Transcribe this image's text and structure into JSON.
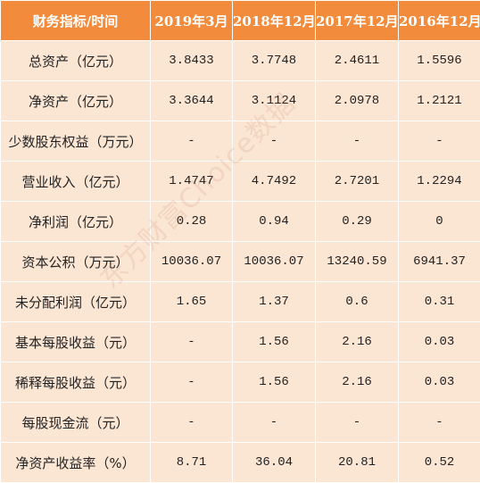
{
  "table": {
    "headers": [
      "财务指标/时间",
      "2019年3月",
      "2018年12月",
      "2017年12月",
      "2016年12月"
    ],
    "rows": [
      {
        "label": "总资产（亿元）",
        "values": [
          "3.8433",
          "3.7748",
          "2.4611",
          "1.5596"
        ]
      },
      {
        "label": "净资产（亿元）",
        "values": [
          "3.3644",
          "3.1124",
          "2.0978",
          "1.2121"
        ]
      },
      {
        "label": "少数股东权益（万元）",
        "values": [
          "-",
          "-",
          "-",
          "-"
        ]
      },
      {
        "label": "营业收入（亿元）",
        "values": [
          "1.4747",
          "4.7492",
          "2.7201",
          "1.2294"
        ]
      },
      {
        "label": "净利润（亿元）",
        "values": [
          "0.28",
          "0.94",
          "0.29",
          "0"
        ]
      },
      {
        "label": "资本公积（万元）",
        "values": [
          "10036.07",
          "10036.07",
          "13240.59",
          "6941.37"
        ]
      },
      {
        "label": "未分配利润（亿元）",
        "values": [
          "1.65",
          "1.37",
          "0.6",
          "0.31"
        ]
      },
      {
        "label": "基本每股收益（元）",
        "values": [
          "-",
          "1.56",
          "2.16",
          "0.03"
        ]
      },
      {
        "label": "稀释每股收益（元）",
        "values": [
          "-",
          "1.56",
          "2.16",
          "0.03"
        ]
      },
      {
        "label": "每股现金流（元）",
        "values": [
          "-",
          "-",
          "-",
          "-"
        ]
      },
      {
        "label": "净资产收益率（%）",
        "values": [
          "8.71",
          "36.04",
          "20.81",
          "0.52"
        ]
      }
    ]
  },
  "watermark": "东方财富Choice数据",
  "colors": {
    "header_bg": "#f28c3c",
    "row_bg": "#fbe6d4",
    "grid": "#ffffff"
  }
}
